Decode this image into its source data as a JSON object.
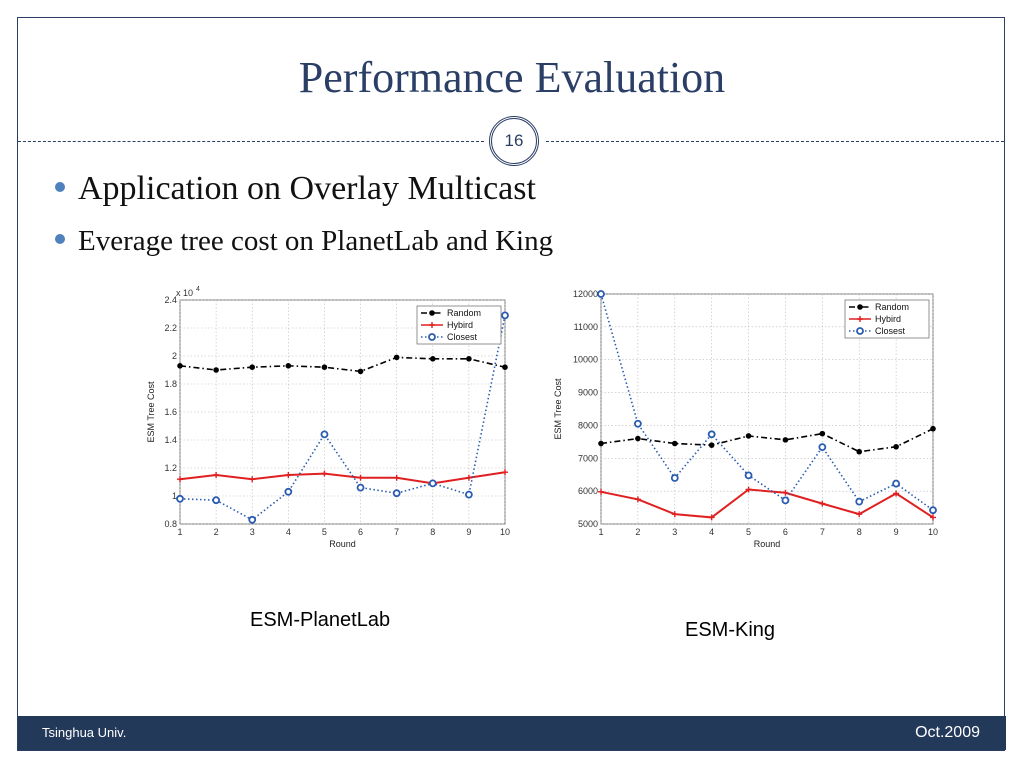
{
  "slide": {
    "title": "Performance Evaluation",
    "page_number": "16",
    "bullets": [
      "Application on Overlay Multicast",
      "Everage tree cost on PlanetLab and King"
    ],
    "footer_left": "Tsinghua Univ.",
    "footer_right": "Oct.2009",
    "captions": [
      "ESM-PlanetLab",
      "ESM-King"
    ],
    "colors": {
      "accent": "#2b3f66",
      "bullet": "#4f81bd",
      "footer": "#22395a",
      "random": "#000000",
      "hybird": "#e02020",
      "closest": "#2a5cb0"
    }
  },
  "chart_data": [
    {
      "type": "line",
      "xlabel": "Round",
      "ylabel": "ESM Tree Cost",
      "y_multiplier_label": "x 10",
      "y_multiplier_exp": "4",
      "x": [
        1,
        2,
        3,
        4,
        5,
        6,
        7,
        8,
        9,
        10
      ],
      "xlim": [
        1,
        10
      ],
      "ylim": [
        0.8,
        2.4
      ],
      "yticks": [
        0.8,
        1,
        1.2,
        1.4,
        1.6,
        1.8,
        2,
        2.2,
        2.4
      ],
      "ytick_labels": [
        "0.8",
        "1",
        "1.2",
        "1.4",
        "1.6",
        "1.8",
        "2",
        "2.2",
        "2.4"
      ],
      "grid": true,
      "legend_position": "top-right",
      "series": [
        {
          "name": "Random",
          "values": [
            1.93,
            1.9,
            1.92,
            1.93,
            1.92,
            1.89,
            1.99,
            1.98,
            1.98,
            1.92
          ]
        },
        {
          "name": "Hybird",
          "values": [
            1.12,
            1.15,
            1.12,
            1.15,
            1.16,
            1.13,
            1.13,
            1.09,
            1.13,
            1.17
          ]
        },
        {
          "name": "Closest",
          "values": [
            0.98,
            0.97,
            0.83,
            1.03,
            1.44,
            1.06,
            1.02,
            1.09,
            1.01,
            2.29
          ]
        }
      ]
    },
    {
      "type": "line",
      "xlabel": "Round",
      "ylabel": "ESM Tree Cost",
      "x": [
        1,
        2,
        3,
        4,
        5,
        6,
        7,
        8,
        9,
        10
      ],
      "xlim": [
        1,
        10
      ],
      "ylim": [
        5000,
        12000
      ],
      "yticks": [
        5000,
        6000,
        7000,
        8000,
        9000,
        10000,
        11000,
        12000
      ],
      "ytick_labels": [
        "5000",
        "6000",
        "7000",
        "8000",
        "9000",
        "10000",
        "11000",
        "12000"
      ],
      "grid": true,
      "legend_position": "top-right",
      "series": [
        {
          "name": "Random",
          "values": [
            7450,
            7600,
            7450,
            7400,
            7680,
            7560,
            7750,
            7200,
            7350,
            7900
          ]
        },
        {
          "name": "Hybird",
          "values": [
            5980,
            5750,
            5300,
            5200,
            6050,
            5950,
            5620,
            5300,
            5930,
            5200
          ]
        },
        {
          "name": "Closest",
          "values": [
            12000,
            8050,
            6400,
            7730,
            6480,
            5720,
            7340,
            5680,
            6230,
            5420
          ]
        }
      ]
    }
  ]
}
